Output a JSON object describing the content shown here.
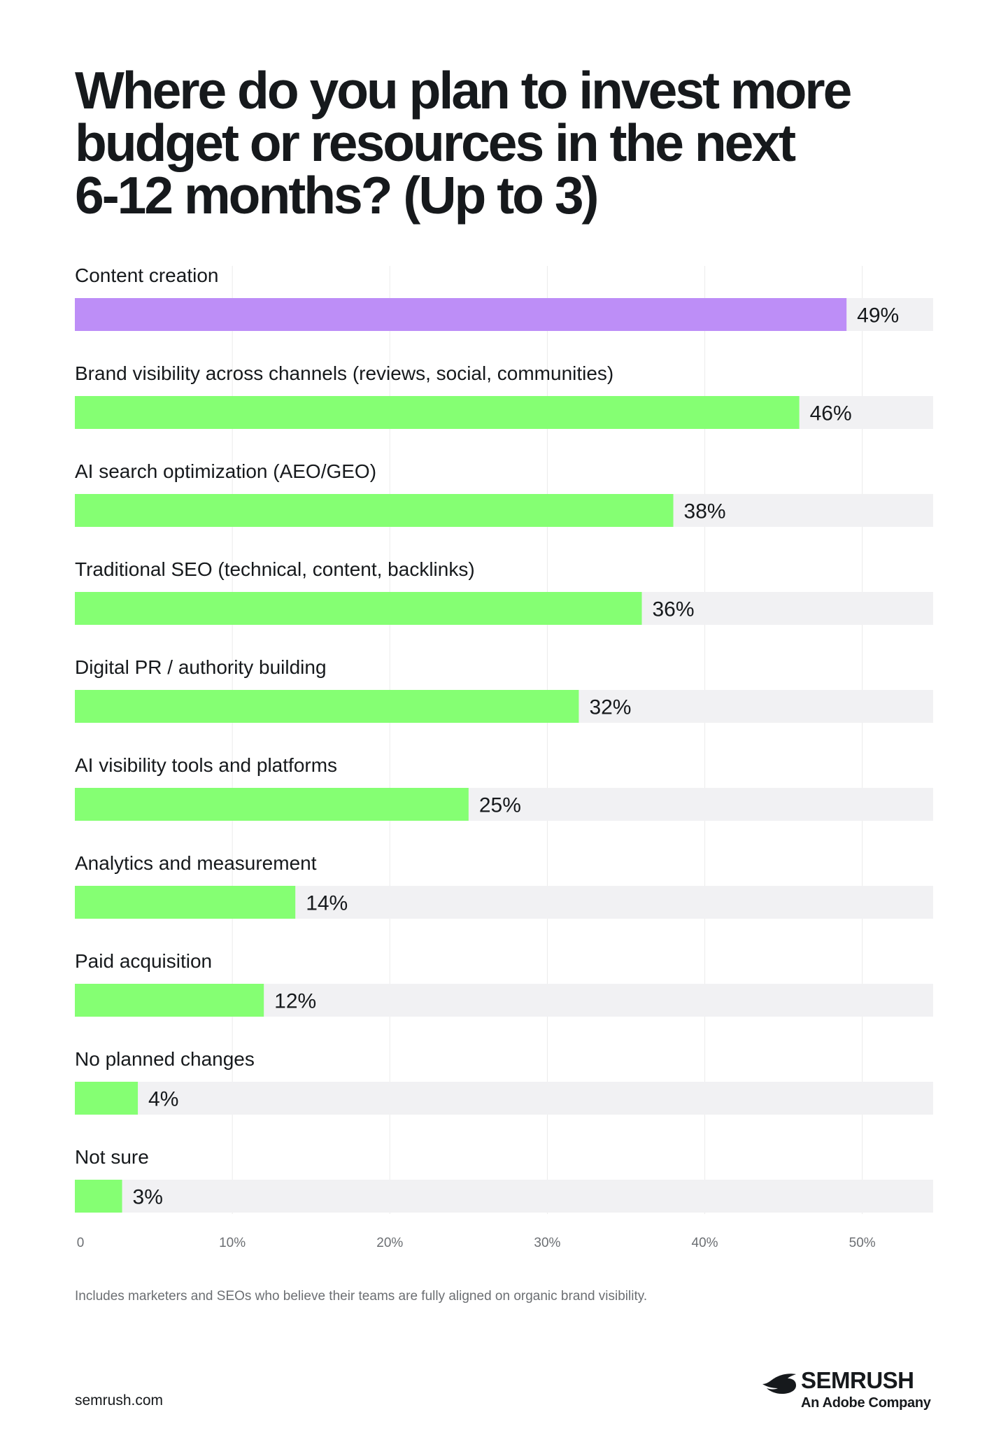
{
  "title": "Where do you plan to invest more\nbudget or resources in the next\n6-12 months? (Up to 3)",
  "footnote": "Includes marketers and SEOs who believe their teams are fully aligned on organic brand visibility.",
  "url": "semrush.com",
  "brand": {
    "name": "SEMRUSH",
    "tagline": "An Adobe Company",
    "icon": "semrush-fire-icon"
  },
  "colors": {
    "highlight": "#bd8ef7",
    "bar": "#85ff73",
    "track": "#f1f1f3",
    "grid": "#ebebeb",
    "text": "#16191c",
    "tick": "#6c6f73"
  },
  "chart_data": {
    "type": "bar",
    "orientation": "horizontal",
    "categories": [
      "Content creation",
      "Brand visibility across channels (reviews, social, communities)",
      "AI search optimization (AEO/GEO)",
      "Traditional SEO (technical, content, backlinks)",
      "Digital PR / authority building",
      "AI visibility tools and platforms",
      "Analytics and measurement",
      "Paid acquisition",
      "No planned changes",
      "Not sure"
    ],
    "values": [
      49,
      46,
      38,
      36,
      32,
      25,
      14,
      12,
      4,
      3
    ],
    "value_labels": [
      "49%",
      "46%",
      "38%",
      "36%",
      "32%",
      "25%",
      "14%",
      "12%",
      "4%",
      "3%"
    ],
    "highlight_index": 0,
    "xlim": [
      0,
      54.5
    ],
    "xticks": [
      0,
      10,
      20,
      30,
      40,
      50
    ],
    "xtick_labels": [
      "0",
      "10%",
      "20%",
      "30%",
      "40%",
      "50%"
    ],
    "grid": true
  }
}
